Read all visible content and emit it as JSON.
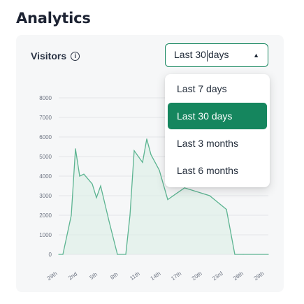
{
  "page": {
    "title": "Analytics"
  },
  "card": {
    "title": "Visitors",
    "info_icon": "info-icon"
  },
  "range_select": {
    "value_before_cursor": "Last 30",
    "value_after_cursor": "days",
    "icon": "chevron-up-icon",
    "options": [
      {
        "label": "Last 7 days",
        "selected": false
      },
      {
        "label": "Last 30 days",
        "selected": true
      },
      {
        "label": "Last 3 months",
        "selected": false
      },
      {
        "label": "Last 6 months",
        "selected": false
      }
    ]
  },
  "colors": {
    "accent": "#15865e",
    "line": "#5cb491",
    "fill": "#d9efe3",
    "grid": "#e4e6e9"
  },
  "chart_data": {
    "type": "area",
    "title": "",
    "xlabel": "",
    "ylabel": "",
    "ylim": [
      0,
      8000
    ],
    "yticks": [
      0,
      1000,
      2000,
      3000,
      4000,
      5000,
      6000,
      7000,
      8000
    ],
    "grid": true,
    "xticks": [
      "29th",
      "2nd",
      "5th",
      "8th",
      "11th",
      "14th",
      "17th",
      "20th",
      "23rd",
      "26th",
      "29th"
    ],
    "x": [
      0,
      0.5,
      1.5,
      2,
      2.5,
      3,
      4,
      4.5,
      5,
      6,
      7,
      8,
      8.5,
      9,
      10,
      10.5,
      11,
      12,
      13,
      15,
      18,
      20,
      21,
      22,
      25
    ],
    "values": [
      0,
      0,
      2000,
      5400,
      4000,
      4100,
      3600,
      2900,
      3500,
      1700,
      0,
      0,
      2000,
      5300,
      4700,
      5900,
      5100,
      4300,
      2800,
      3400,
      3000,
      2300,
      0,
      0,
      0
    ]
  }
}
